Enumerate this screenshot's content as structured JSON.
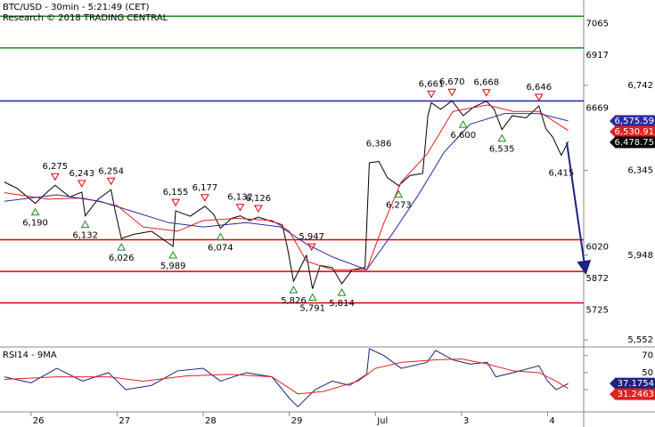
{
  "chart_data": [
    {
      "type": "line",
      "title": "BTC/USD - 30min - 5:21:49 (CET)",
      "subtitle": "Research © 2018 TRADING CENTRAL",
      "xlim": [
        -0.36,
        6.42
      ],
      "ylim": [
        5519,
        7141
      ],
      "yticks": [
        {
          "value": 5552,
          "label": "5,552"
        },
        {
          "value": 5948,
          "label": "5,948"
        },
        {
          "value": 6345,
          "label": "6,345"
        },
        {
          "value": 6742,
          "label": "6,742"
        }
      ],
      "series": [
        {
          "color": "#000000",
          "x": [
            -0.31,
            -0.16,
            0.05,
            0.18,
            0.28,
            0.45,
            0.59,
            0.63,
            0.78,
            0.93,
            0.98,
            1.05,
            1.19,
            1.4,
            1.65,
            1.68,
            1.85,
            2.02,
            2.12,
            2.2,
            2.33,
            2.43,
            2.54,
            2.64,
            2.8,
            2.92,
            2.98,
            3.05,
            3.14,
            3.2,
            3.27,
            3.36,
            3.5,
            3.61,
            3.73,
            3.88,
            3.93,
            4.04,
            4.14,
            4.27,
            4.4,
            4.55,
            4.61,
            4.65,
            4.76,
            4.89,
            5.02,
            5.14,
            5.29,
            5.38,
            5.47,
            5.59,
            5.75,
            5.9,
            5.98,
            6.06,
            6.16,
            6.24
          ],
          "values": [
            6290,
            6260,
            6190,
            6240,
            6275,
            6220,
            6243,
            6132,
            6210,
            6254,
            6150,
            6026,
            6045,
            6060,
            5989,
            6155,
            6130,
            6177,
            6140,
            6074,
            6120,
            6132,
            6110,
            6126,
            6105,
            6090,
            5980,
            5826,
            5900,
            5947,
            5791,
            5900,
            5890,
            5814,
            5880,
            5890,
            6380,
            6386,
            6310,
            6273,
            6320,
            6330,
            6600,
            6661,
            6630,
            6670,
            6600,
            6640,
            6668,
            6630,
            6535,
            6600,
            6590,
            6646,
            6540,
            6500,
            6415,
            6478.75
          ]
        },
        {
          "color": "#e02020",
          "x": [
            -0.31,
            0.2,
            0.6,
            1.0,
            1.3,
            1.7,
            2.0,
            2.4,
            2.8,
            3.0,
            3.2,
            3.5,
            3.9,
            4.1,
            4.3,
            4.6,
            4.9,
            5.3,
            5.6,
            5.9,
            6.24
          ],
          "values": [
            6240,
            6210,
            6215,
            6180,
            6080,
            6060,
            6110,
            6120,
            6110,
            6060,
            5920,
            5880,
            5880,
            6100,
            6290,
            6420,
            6620,
            6650,
            6620,
            6620,
            6530.91
          ]
        },
        {
          "color": "#2a2aa0",
          "x": [
            -0.31,
            0.3,
            0.8,
            1.2,
            1.6,
            2.0,
            2.5,
            2.9,
            3.2,
            3.5,
            3.9,
            4.2,
            4.5,
            4.8,
            5.1,
            5.5,
            5.9,
            6.24
          ],
          "values": [
            6200,
            6230,
            6200,
            6150,
            6100,
            6080,
            6100,
            6080,
            6000,
            5940,
            5880,
            6050,
            6230,
            6430,
            6560,
            6610,
            6610,
            6575.59
          ]
        }
      ],
      "levels": [
        {
          "value": 7065,
          "color": "#1a8a1a"
        },
        {
          "value": 6917,
          "color": "#1a8a1a"
        },
        {
          "value": 6669,
          "color": "#2020c0"
        },
        {
          "value": 6020,
          "color": "#e00000"
        },
        {
          "value": 5872,
          "color": "#e00000"
        },
        {
          "value": 5725,
          "color": "#e00000"
        }
      ],
      "annotations": [
        {
          "x": 0.28,
          "value": 6275,
          "label": "6,275",
          "marker": "down"
        },
        {
          "x": 0.59,
          "value": 6243,
          "label": "6,243",
          "marker": "down"
        },
        {
          "x": 0.93,
          "value": 6254,
          "label": "6,254",
          "marker": "down"
        },
        {
          "x": 1.68,
          "value": 6155,
          "label": "6,155",
          "marker": "down"
        },
        {
          "x": 2.02,
          "value": 6177,
          "label": "6,177",
          "marker": "down"
        },
        {
          "x": 2.43,
          "value": 6132,
          "label": "6,132",
          "marker": "down"
        },
        {
          "x": 2.64,
          "value": 6126,
          "label": "6,126",
          "marker": "down"
        },
        {
          "x": 3.26,
          "value": 5947,
          "label": "5,947",
          "marker": "down"
        },
        {
          "x": 4.04,
          "value": 6386,
          "label": "6,386"
        },
        {
          "x": 4.65,
          "value": 6661,
          "label": "6,661",
          "marker": "down"
        },
        {
          "x": 4.89,
          "value": 6670,
          "label": "6,670",
          "marker": "down"
        },
        {
          "x": 5.29,
          "value": 6668,
          "label": "6,668",
          "marker": "down"
        },
        {
          "x": 5.9,
          "value": 6646,
          "label": "6,646",
          "marker": "down"
        },
        {
          "x": 0.05,
          "value": 6190,
          "label": "6,190",
          "marker": "up"
        },
        {
          "x": 0.63,
          "value": 6132,
          "label": "6,132",
          "marker": "up"
        },
        {
          "x": 1.05,
          "value": 6026,
          "label": "6,026",
          "marker": "up"
        },
        {
          "x": 1.65,
          "value": 5989,
          "label": "5,989",
          "marker": "up"
        },
        {
          "x": 2.2,
          "value": 6074,
          "label": "6,074",
          "marker": "up"
        },
        {
          "x": 3.05,
          "value": 5826,
          "label": "5,826",
          "marker": "up"
        },
        {
          "x": 3.27,
          "value": 5791,
          "label": "5,791",
          "marker": "up"
        },
        {
          "x": 3.61,
          "value": 5814,
          "label": "5,814",
          "marker": "up"
        },
        {
          "x": 4.27,
          "value": 6273,
          "label": "6,273",
          "marker": "up"
        },
        {
          "x": 5.02,
          "value": 6600,
          "label": "6,600",
          "marker": "up"
        },
        {
          "x": 5.47,
          "value": 6535,
          "label": "6,535",
          "marker": "up"
        },
        {
          "x": 6.16,
          "value": 6415,
          "label": "6,415"
        }
      ],
      "last_values": [
        {
          "value": 6575.59,
          "label": "6,575.59",
          "color": "#2a2aa0"
        },
        {
          "value": 6530.91,
          "label": "6,530.91",
          "color": "#e02020"
        },
        {
          "value": 6478.75,
          "label": "6,478.75",
          "color": "#000000"
        }
      ]
    },
    {
      "type": "line",
      "title": "RSI14 - 9MA",
      "xlim": [
        -0.36,
        6.42
      ],
      "ylim": [
        5,
        78
      ],
      "yticks": [
        30,
        50,
        70
      ],
      "xticks": [
        {
          "value": 0,
          "label": "26"
        },
        {
          "value": 1,
          "label": "27"
        },
        {
          "value": 2,
          "label": "28"
        },
        {
          "value": 3,
          "label": "29"
        },
        {
          "value": 4,
          "label": "Jul"
        },
        {
          "value": 5,
          "label": "3"
        },
        {
          "value": 6,
          "label": "4"
        }
      ],
      "series": [
        {
          "color": "#1a237e",
          "x": [
            -0.31,
            0,
            0.3,
            0.6,
            0.9,
            1.1,
            1.4,
            1.7,
            2.0,
            2.2,
            2.5,
            2.8,
            3.0,
            3.1,
            3.3,
            3.5,
            3.7,
            3.9,
            3.93,
            4.1,
            4.3,
            4.6,
            4.7,
            4.9,
            5.1,
            5.3,
            5.4,
            5.6,
            5.9,
            6.0,
            6.1,
            6.24
          ],
          "values": [
            45,
            38,
            55,
            40,
            50,
            30,
            35,
            52,
            55,
            40,
            50,
            45,
            20,
            10,
            30,
            40,
            35,
            48,
            78,
            70,
            55,
            62,
            76,
            65,
            60,
            62,
            45,
            50,
            58,
            40,
            30,
            37.1754
          ]
        },
        {
          "color": "#e02020",
          "x": [
            -0.31,
            0.3,
            0.9,
            1.3,
            1.8,
            2.3,
            2.8,
            3.1,
            3.4,
            3.8,
            4.0,
            4.3,
            4.7,
            5.0,
            5.3,
            5.6,
            5.9,
            6.1,
            6.24
          ],
          "values": [
            42,
            45,
            45,
            40,
            46,
            48,
            45,
            25,
            28,
            40,
            55,
            62,
            65,
            66,
            60,
            52,
            50,
            40,
            31.2463
          ]
        }
      ],
      "last_values": [
        {
          "value": 37.1754,
          "label": "37.1754",
          "color": "#1a237e"
        },
        {
          "value": 31.2463,
          "label": "31.2463",
          "color": "#e02020"
        }
      ]
    }
  ]
}
